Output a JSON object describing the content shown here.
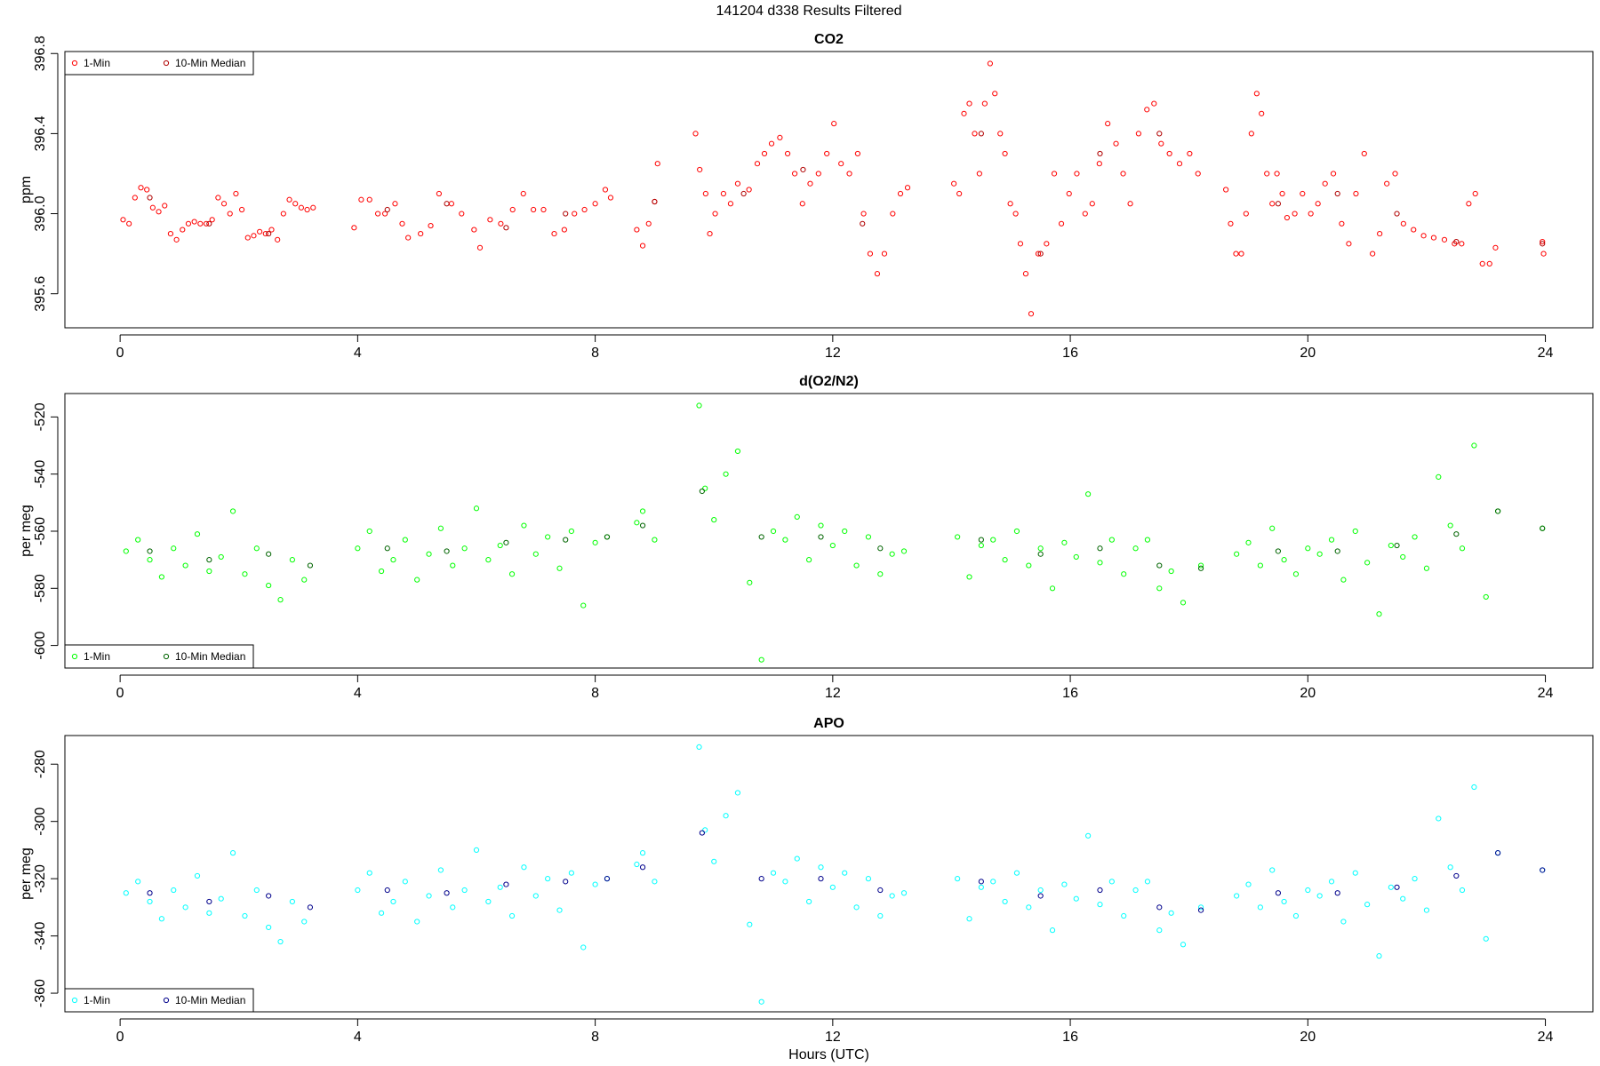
{
  "title": "141204   d338   Results Filtered",
  "chart_data": [
    {
      "type": "scatter",
      "title": "CO2",
      "y_label": "ppm",
      "legend": "top-left",
      "xlim": [
        -0.93,
        24.8
      ],
      "xticks": [
        0,
        4,
        8,
        12,
        16,
        20,
        24
      ],
      "ylim": [
        395.43,
        396.81
      ],
      "yticks": [
        395.6,
        {
          "value": 396.0,
          "label": "396.0"
        },
        396.4,
        396.8
      ],
      "series": [
        {
          "name": "1-Min",
          "color": "#ff0000",
          "x": [
            0.05,
            0.15,
            0.25,
            0.35,
            0.45,
            0.55,
            0.65,
            0.75,
            0.85,
            0.95,
            1.05,
            1.15,
            1.25,
            1.35,
            1.45,
            1.55,
            1.65,
            1.75,
            1.85,
            1.95,
            2.05,
            2.15,
            2.25,
            2.35,
            2.45,
            2.55,
            2.65,
            2.75,
            2.85,
            2.95,
            3.05,
            3.15,
            3.25,
            3.94,
            4.06,
            4.2,
            4.34,
            4.46,
            4.63,
            4.75,
            4.85,
            5.06,
            5.23,
            5.37,
            5.58,
            5.75,
            5.96,
            6.06,
            6.23,
            6.41,
            6.61,
            6.79,
            6.96,
            7.13,
            7.31,
            7.48,
            7.65,
            7.82,
            8.0,
            8.17,
            8.26,
            8.7,
            8.8,
            8.9,
            9.0,
            9.05,
            9.69,
            9.76,
            9.86,
            9.93,
            10.02,
            10.16,
            10.28,
            10.4,
            10.59,
            10.73,
            10.85,
            10.97,
            11.11,
            11.24,
            11.36,
            11.49,
            11.62,
            11.76,
            11.9,
            12.02,
            12.14,
            12.28,
            12.42,
            12.52,
            12.63,
            12.75,
            12.87,
            13.01,
            13.14,
            13.26,
            14.04,
            14.13,
            14.21,
            14.3,
            14.39,
            14.47,
            14.56,
            14.65,
            14.73,
            14.82,
            14.9,
            14.99,
            15.08,
            15.16,
            15.25,
            15.34,
            15.46,
            15.6,
            15.73,
            15.85,
            15.98,
            16.11,
            16.25,
            16.37,
            16.49,
            16.63,
            16.77,
            16.89,
            17.01,
            17.15,
            17.29,
            17.41,
            17.53,
            17.67,
            17.84,
            18.01,
            18.15,
            18.62,
            18.7,
            18.79,
            18.88,
            18.96,
            19.05,
            19.14,
            19.22,
            19.31,
            19.4,
            19.48,
            19.57,
            19.65,
            19.78,
            19.91,
            20.05,
            20.17,
            20.29,
            20.43,
            20.57,
            20.69,
            20.81,
            20.95,
            21.09,
            21.21,
            21.33,
            21.47,
            21.61,
            21.78,
            21.95,
            22.12,
            22.3,
            22.47,
            22.59,
            22.71,
            22.82,
            22.94,
            23.06,
            23.16,
            23.95,
            23.97
          ],
          "values": [
            395.97,
            395.95,
            396.08,
            396.13,
            396.12,
            396.03,
            396.01,
            396.04,
            395.9,
            395.87,
            395.92,
            395.95,
            395.96,
            395.95,
            395.95,
            395.97,
            396.08,
            396.05,
            396.0,
            396.1,
            396.02,
            395.88,
            395.89,
            395.91,
            395.9,
            395.92,
            395.87,
            396.0,
            396.07,
            396.05,
            396.03,
            396.02,
            396.03,
            395.93,
            396.07,
            396.07,
            396.0,
            396.0,
            396.05,
            395.95,
            395.88,
            395.9,
            395.94,
            396.1,
            396.05,
            396.0,
            395.92,
            395.83,
            395.97,
            395.95,
            396.02,
            396.1,
            396.02,
            396.02,
            395.9,
            395.92,
            396.0,
            396.02,
            396.05,
            396.12,
            396.08,
            395.92,
            395.84,
            395.95,
            396.06,
            396.25,
            396.4,
            396.22,
            396.1,
            395.9,
            396.0,
            396.1,
            396.05,
            396.15,
            396.12,
            396.25,
            396.3,
            396.35,
            396.38,
            396.3,
            396.2,
            396.05,
            396.15,
            396.2,
            396.3,
            396.45,
            396.25,
            396.2,
            396.3,
            396.0,
            395.8,
            395.7,
            395.8,
            396.0,
            396.1,
            396.13,
            396.15,
            396.1,
            396.5,
            396.55,
            396.4,
            396.2,
            396.55,
            396.75,
            396.6,
            396.4,
            396.3,
            396.05,
            396.0,
            395.85,
            395.7,
            395.5,
            395.8,
            395.85,
            396.2,
            395.95,
            396.1,
            396.2,
            396.0,
            396.05,
            396.25,
            396.45,
            396.35,
            396.2,
            396.05,
            396.4,
            396.52,
            396.55,
            396.35,
            396.3,
            396.25,
            396.3,
            396.2,
            396.12,
            395.95,
            395.8,
            395.8,
            396.0,
            396.4,
            396.6,
            396.5,
            396.2,
            396.05,
            396.2,
            396.1,
            395.98,
            396.0,
            396.1,
            396.0,
            396.05,
            396.15,
            396.2,
            395.95,
            395.85,
            396.1,
            396.3,
            395.8,
            395.9,
            396.15,
            396.2,
            395.95,
            395.92,
            395.89,
            395.88,
            395.87,
            395.85,
            395.85,
            396.05,
            396.1,
            395.75,
            395.75,
            395.83,
            395.86,
            395.8
          ]
        },
        {
          "name": "10-Min Median",
          "color": "#b00000",
          "x": [
            0.5,
            1.5,
            2.5,
            4.5,
            5.5,
            6.5,
            7.5,
            9.0,
            10.5,
            11.5,
            12.5,
            14.5,
            15.5,
            16.5,
            17.5,
            19.5,
            20.5,
            21.5,
            22.5,
            23.95
          ],
          "values": [
            396.08,
            395.95,
            395.9,
            396.02,
            396.05,
            395.93,
            396.0,
            396.06,
            396.1,
            396.22,
            395.95,
            396.4,
            395.8,
            396.3,
            396.4,
            396.05,
            396.1,
            396.0,
            395.86,
            395.85
          ]
        }
      ]
    },
    {
      "type": "scatter",
      "title": "d(O2/N2)",
      "y_label": "per meg",
      "legend": "bottom-left",
      "xlim": [
        -0.93,
        24.8
      ],
      "xticks": [
        0,
        4,
        8,
        12,
        16,
        20,
        24
      ],
      "ylim": [
        -607.9,
        -511.8
      ],
      "yticks": [
        -600,
        -580,
        -560,
        -540,
        -520
      ],
      "series": [
        {
          "name": "1-Min",
          "color": "#00ff00",
          "x": [
            0.1,
            0.3,
            0.5,
            0.7,
            0.9,
            1.1,
            1.3,
            1.5,
            1.7,
            1.9,
            2.1,
            2.3,
            2.5,
            2.7,
            2.9,
            3.1,
            4.0,
            4.2,
            4.4,
            4.6,
            4.8,
            5.0,
            5.2,
            5.4,
            5.6,
            5.8,
            6.0,
            6.2,
            6.4,
            6.6,
            6.8,
            7.0,
            7.2,
            7.4,
            7.6,
            7.8,
            8.0,
            8.2,
            8.7,
            8.8,
            9.0,
            9.75,
            9.85,
            10.0,
            10.2,
            10.4,
            10.6,
            10.8,
            11.0,
            11.2,
            11.4,
            11.6,
            11.8,
            12.0,
            12.2,
            12.4,
            12.6,
            12.8,
            13.0,
            13.2,
            14.1,
            14.3,
            14.5,
            14.7,
            14.9,
            15.1,
            15.3,
            15.5,
            15.7,
            15.9,
            16.1,
            16.3,
            16.5,
            16.7,
            16.9,
            17.1,
            17.3,
            17.5,
            17.7,
            17.9,
            18.2,
            18.8,
            19.0,
            19.2,
            19.4,
            19.6,
            19.8,
            20.0,
            20.2,
            20.4,
            20.6,
            20.8,
            21.0,
            21.2,
            21.4,
            21.6,
            21.8,
            22.0,
            22.2,
            22.4,
            22.6,
            22.8,
            23.0,
            23.2,
            23.95
          ],
          "values": [
            -567,
            -563,
            -570,
            -576,
            -566,
            -572,
            -561,
            -574,
            -569,
            -553,
            -575,
            -566,
            -579,
            -584,
            -570,
            -577,
            -566,
            -560,
            -574,
            -570,
            -563,
            -577,
            -568,
            -559,
            -572,
            -566,
            -552,
            -570,
            -565,
            -575,
            -558,
            -568,
            -562,
            -573,
            -560,
            -586,
            -564,
            -562,
            -557,
            -553,
            -563,
            -516,
            -545,
            -556,
            -540,
            -532,
            -578,
            -605,
            -560,
            -563,
            -555,
            -570,
            -558,
            -565,
            -560,
            -572,
            -562,
            -575,
            -568,
            -567,
            -562,
            -576,
            -565,
            -563,
            -570,
            -560,
            -572,
            -566,
            -580,
            -564,
            -569,
            -547,
            -571,
            -563,
            -575,
            -566,
            -563,
            -580,
            -574,
            -585,
            -572,
            -568,
            -564,
            -572,
            -559,
            -570,
            -575,
            -566,
            -568,
            -563,
            -577,
            -560,
            -571,
            -589,
            -565,
            -569,
            -562,
            -573,
            -541,
            -558,
            -566,
            -530,
            -583,
            -553,
            -559
          ]
        },
        {
          "name": "10-Min Median",
          "color": "#006400",
          "x": [
            0.5,
            1.5,
            2.5,
            3.2,
            4.5,
            5.5,
            6.5,
            7.5,
            8.2,
            8.8,
            9.8,
            10.8,
            11.8,
            12.8,
            14.5,
            15.5,
            16.5,
            17.5,
            18.2,
            19.5,
            20.5,
            21.5,
            22.5,
            23.2,
            23.95
          ],
          "values": [
            -567,
            -570,
            -568,
            -572,
            -566,
            -567,
            -564,
            -563,
            -562,
            -558,
            -546,
            -562,
            -562,
            -566,
            -563,
            -568,
            -566,
            -572,
            -573,
            -567,
            -567,
            -565,
            -561,
            -553,
            -559
          ]
        }
      ]
    },
    {
      "type": "scatter",
      "title": "APO",
      "y_label": "per meg",
      "x_label": "Hours (UTC)",
      "legend": "bottom-left",
      "xlim": [
        -0.93,
        24.8
      ],
      "xticks": [
        0,
        4,
        8,
        12,
        16,
        20,
        24
      ],
      "ylim": [
        -366.5,
        -270
      ],
      "yticks": [
        -360,
        -340,
        -320,
        -300,
        -280
      ],
      "series": [
        {
          "name": "1-Min",
          "color": "#00ffff",
          "x": [
            0.1,
            0.3,
            0.5,
            0.7,
            0.9,
            1.1,
            1.3,
            1.5,
            1.7,
            1.9,
            2.1,
            2.3,
            2.5,
            2.7,
            2.9,
            3.1,
            4.0,
            4.2,
            4.4,
            4.6,
            4.8,
            5.0,
            5.2,
            5.4,
            5.6,
            5.8,
            6.0,
            6.2,
            6.4,
            6.6,
            6.8,
            7.0,
            7.2,
            7.4,
            7.6,
            7.8,
            8.0,
            8.2,
            8.7,
            8.8,
            9.0,
            9.75,
            9.85,
            10.0,
            10.2,
            10.4,
            10.6,
            10.8,
            11.0,
            11.2,
            11.4,
            11.6,
            11.8,
            12.0,
            12.2,
            12.4,
            12.6,
            12.8,
            13.0,
            13.2,
            14.1,
            14.3,
            14.5,
            14.7,
            14.9,
            15.1,
            15.3,
            15.5,
            15.7,
            15.9,
            16.1,
            16.3,
            16.5,
            16.7,
            16.9,
            17.1,
            17.3,
            17.5,
            17.7,
            17.9,
            18.2,
            18.8,
            19.0,
            19.2,
            19.4,
            19.6,
            19.8,
            20.0,
            20.2,
            20.4,
            20.6,
            20.8,
            21.0,
            21.2,
            21.4,
            21.6,
            21.8,
            22.0,
            22.2,
            22.4,
            22.6,
            22.8,
            23.0,
            23.2,
            23.95
          ],
          "values": [
            -325,
            -321,
            -328,
            -334,
            -324,
            -330,
            -319,
            -332,
            -327,
            -311,
            -333,
            -324,
            -337,
            -342,
            -328,
            -335,
            -324,
            -318,
            -332,
            -328,
            -321,
            -335,
            -326,
            -317,
            -330,
            -324,
            -310,
            -328,
            -323,
            -333,
            -316,
            -326,
            -320,
            -331,
            -318,
            -344,
            -322,
            -320,
            -315,
            -311,
            -321,
            -274,
            -303,
            -314,
            -298,
            -290,
            -336,
            -363,
            -318,
            -321,
            -313,
            -328,
            -316,
            -323,
            -318,
            -330,
            -320,
            -333,
            -326,
            -325,
            -320,
            -334,
            -323,
            -321,
            -328,
            -318,
            -330,
            -324,
            -338,
            -322,
            -327,
            -305,
            -329,
            -321,
            -333,
            -324,
            -321,
            -338,
            -332,
            -343,
            -330,
            -326,
            -322,
            -330,
            -317,
            -328,
            -333,
            -324,
            -326,
            -321,
            -335,
            -318,
            -329,
            -347,
            -323,
            -327,
            -320,
            -331,
            -299,
            -316,
            -324,
            -288,
            -341,
            -311,
            -317
          ]
        },
        {
          "name": "10-Min Median",
          "color": "#00008b",
          "x": [
            0.5,
            1.5,
            2.5,
            3.2,
            4.5,
            5.5,
            6.5,
            7.5,
            8.2,
            8.8,
            9.8,
            10.8,
            11.8,
            12.8,
            14.5,
            15.5,
            16.5,
            17.5,
            18.2,
            19.5,
            20.5,
            21.5,
            22.5,
            23.2,
            23.95
          ],
          "values": [
            -325,
            -328,
            -326,
            -330,
            -324,
            -325,
            -322,
            -321,
            -320,
            -316,
            -304,
            -320,
            -320,
            -324,
            -321,
            -326,
            -324,
            -330,
            -331,
            -325,
            -325,
            -323,
            -319,
            -311,
            -317
          ]
        }
      ]
    }
  ]
}
